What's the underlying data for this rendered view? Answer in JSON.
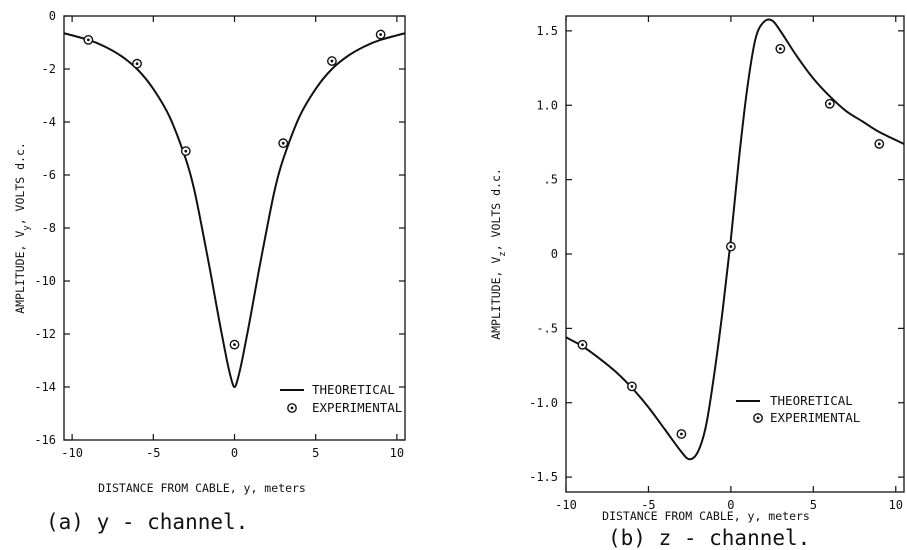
{
  "chart_data": [
    {
      "type": "line",
      "caption": "(a) y - channel.",
      "xlabel": "DISTANCE FROM CABLE, y, meters",
      "ylabel_parts": [
        "AMPLITUDE, V",
        "y",
        ", VOLTS d.c."
      ],
      "xlim": [
        -10.5,
        10.5
      ],
      "ylim": [
        -16,
        0
      ],
      "x_ticks": [
        -10,
        -5,
        0,
        5,
        10
      ],
      "x_tick_labels": [
        "-10",
        "-5",
        "0",
        "5",
        "10"
      ],
      "y_ticks": [
        0,
        -2,
        -4,
        -6,
        -8,
        -10,
        -12,
        -14,
        -16
      ],
      "y_tick_labels": [
        "0",
        "-2",
        "-4",
        "-6",
        "-8",
        "-10",
        "-12",
        "-14",
        "-16"
      ],
      "legend_position": "bottom-right",
      "series": [
        {
          "name": "THEORETICAL",
          "style": "line",
          "x": [
            -10.5,
            -9,
            -8,
            -7,
            -6,
            -5,
            -4,
            -3,
            -2.5,
            -2,
            -1.5,
            -1,
            -0.5,
            -0.2,
            0,
            0.2,
            0.5,
            1,
            1.5,
            2,
            2.5,
            3,
            4,
            5,
            6,
            7,
            8,
            9,
            10.5
          ],
          "y": [
            -0.65,
            -0.9,
            -1.15,
            -1.5,
            -2.0,
            -2.75,
            -3.8,
            -5.4,
            -6.5,
            -8.0,
            -9.6,
            -11.3,
            -12.9,
            -13.7,
            -14.0,
            -13.7,
            -12.9,
            -11.3,
            -9.6,
            -8.0,
            -6.5,
            -5.4,
            -3.8,
            -2.75,
            -2.0,
            -1.5,
            -1.15,
            -0.9,
            -0.65
          ]
        },
        {
          "name": "EXPERIMENTAL",
          "style": "points",
          "x": [
            -9,
            -6,
            -3,
            0,
            3,
            6,
            9
          ],
          "y": [
            -0.9,
            -1.8,
            -5.1,
            -12.4,
            -4.8,
            -1.7,
            -0.7
          ]
        }
      ]
    },
    {
      "type": "line",
      "caption": "(b) z - channel.",
      "xlabel": "DISTANCE FROM CABLE, y, meters",
      "ylabel_parts": [
        "AMPLITUDE, V",
        "z",
        ", VOLTS d.c."
      ],
      "xlim": [
        -10,
        10.5
      ],
      "ylim": [
        -1.6,
        1.6
      ],
      "x_ticks": [
        -10,
        -5,
        0,
        5,
        10
      ],
      "x_tick_labels": [
        "-10",
        "-5",
        "0",
        "5",
        "10"
      ],
      "y_ticks": [
        1.5,
        1.0,
        0.5,
        0,
        -0.5,
        -1.0,
        -1.5
      ],
      "y_tick_labels": [
        "1.5",
        "1.0",
        ".5",
        "0",
        "-.5",
        "-1.0",
        "-1.5"
      ],
      "legend_position": "bottom-right",
      "series": [
        {
          "name": "THEORETICAL",
          "style": "line",
          "x": [
            -10,
            -9,
            -8,
            -7,
            -6,
            -5,
            -4,
            -3,
            -2.5,
            -2,
            -1.5,
            -1,
            -0.5,
            0,
            0.5,
            1,
            1.5,
            2,
            2.5,
            3,
            4,
            5,
            6,
            7,
            8,
            9,
            10.5
          ],
          "y": [
            -0.56,
            -0.62,
            -0.7,
            -0.79,
            -0.9,
            -1.03,
            -1.18,
            -1.33,
            -1.38,
            -1.33,
            -1.15,
            -0.8,
            -0.38,
            0.1,
            0.65,
            1.12,
            1.45,
            1.56,
            1.57,
            1.5,
            1.33,
            1.18,
            1.06,
            0.96,
            0.89,
            0.82,
            0.74
          ]
        },
        {
          "name": "EXPERIMENTAL",
          "style": "points",
          "x": [
            -9,
            -6,
            -3,
            0,
            3,
            6,
            9
          ],
          "y": [
            -0.61,
            -0.89,
            -1.21,
            0.05,
            1.38,
            1.01,
            0.74
          ]
        }
      ]
    }
  ]
}
